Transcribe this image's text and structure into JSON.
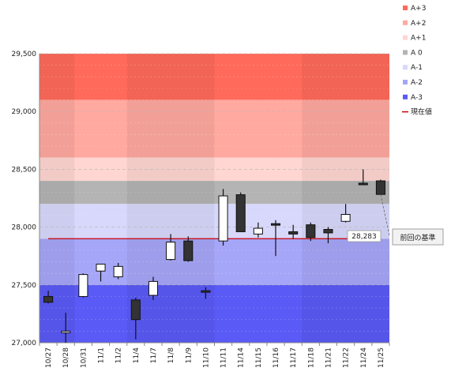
{
  "chart_data": {
    "type": "candlestick",
    "categories": [
      "10/27",
      "10/28",
      "10/31",
      "11/1",
      "11/2",
      "11/4",
      "11/7",
      "11/8",
      "11/9",
      "11/10",
      "11/11",
      "11/14",
      "11/15",
      "11/16",
      "11/17",
      "11/18",
      "11/21",
      "11/22",
      "11/24",
      "11/25"
    ],
    "ylim": [
      27000,
      29500
    ],
    "yticks": [
      {
        "value": 27000,
        "label": "27,000"
      },
      {
        "value": 27500,
        "label": "27,500"
      },
      {
        "value": 28000,
        "label": "28,000"
      },
      {
        "value": 28500,
        "label": "28,500"
      },
      {
        "value": 29000,
        "label": "29,000"
      },
      {
        "value": 29500,
        "label": "29,500"
      }
    ],
    "candles": [
      {
        "open": 27400,
        "high": 27450,
        "low": 27340,
        "close": 27350
      },
      {
        "open": 27100,
        "high": 27260,
        "low": 27000,
        "close": 27100
      },
      {
        "open": 27400,
        "high": 27600,
        "low": 27390,
        "close": 27590
      },
      {
        "open": 27620,
        "high": 27680,
        "low": 27530,
        "close": 27680
      },
      {
        "open": 27570,
        "high": 27690,
        "low": 27550,
        "close": 27660
      },
      {
        "open": 27370,
        "high": 27390,
        "low": 27030,
        "close": 27200
      },
      {
        "open": 27410,
        "high": 27570,
        "low": 27370,
        "close": 27530
      },
      {
        "open": 27720,
        "high": 27940,
        "low": 27710,
        "close": 27870
      },
      {
        "open": 27880,
        "high": 27920,
        "low": 27700,
        "close": 27710
      },
      {
        "open": 27450,
        "high": 27480,
        "low": 27380,
        "close": 27440
      },
      {
        "open": 27880,
        "high": 28330,
        "low": 27840,
        "close": 28270
      },
      {
        "open": 28280,
        "high": 28300,
        "low": 27960,
        "close": 27960
      },
      {
        "open": 27940,
        "high": 28040,
        "low": 27910,
        "close": 27990
      },
      {
        "open": 28030,
        "high": 28060,
        "low": 27750,
        "close": 28020
      },
      {
        "open": 27960,
        "high": 28020,
        "low": 27900,
        "close": 27940
      },
      {
        "open": 28020,
        "high": 28040,
        "low": 27880,
        "close": 27910
      },
      {
        "open": 27980,
        "high": 28000,
        "low": 27860,
        "close": 27950
      },
      {
        "open": 28050,
        "high": 28200,
        "low": 28040,
        "close": 28110
      },
      {
        "open": 28380,
        "high": 28500,
        "low": 28370,
        "close": 28370
      },
      {
        "open": 28400,
        "high": 28410,
        "low": 28280,
        "close": 28283
      }
    ],
    "zones": [
      {
        "name": "A+3",
        "from": 29100,
        "to": 29500,
        "color": "#ff6a5a"
      },
      {
        "name": "A+2",
        "from": 28600,
        "to": 29100,
        "color": "#ffa9a0"
      },
      {
        "name": "A+1",
        "from": 28400,
        "to": 28600,
        "color": "#ffd6d1"
      },
      {
        "name": "A 0",
        "from": 28200,
        "to": 28400,
        "color": "#b4b4b4"
      },
      {
        "name": "A-1",
        "from": 27900,
        "to": 28200,
        "color": "#d8d8fc"
      },
      {
        "name": "A-2",
        "from": 27500,
        "to": 27900,
        "color": "#a6a6f8"
      },
      {
        "name": "A-3",
        "from": 27000,
        "to": 27500,
        "color": "#5a5af6"
      }
    ],
    "current_value_line": 27900,
    "current_value_label": "現在値",
    "last_value": 28283,
    "last_value_label": "28,283",
    "annotation": "前回の基準",
    "colors": {
      "up_fill": "#ffffff",
      "down_fill": "#333333",
      "wick": "#111111",
      "current_line": "#cc0000"
    }
  }
}
